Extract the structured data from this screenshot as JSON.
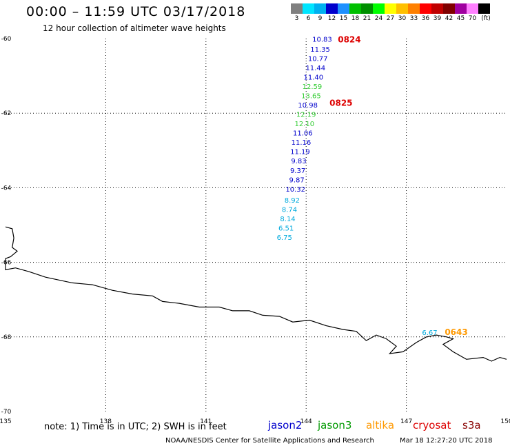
{
  "header": {
    "title": "00:00 – 11:59 UTC 03/17/2018",
    "subtitle": "12 hour collection of altimeter wave heights"
  },
  "legend": {
    "colors": [
      "#808080",
      "#00e5ff",
      "#00b0f0",
      "#0000cc",
      "#1e90ff",
      "#00c000",
      "#009000",
      "#00ff00",
      "#ffff00",
      "#ffc000",
      "#ff8000",
      "#ff0000",
      "#c00000",
      "#800000",
      "#a000a0",
      "#ff80ff",
      "#000000"
    ],
    "labels": [
      "3",
      "6",
      "9",
      "12",
      "15",
      "18",
      "21",
      "24",
      "27",
      "30",
      "33",
      "36",
      "39",
      "42",
      "45",
      "70",
      "(ft)"
    ]
  },
  "map": {
    "lon_range": [
      135,
      150
    ],
    "lat_range": [
      -70,
      -60
    ],
    "lon_ticks": [
      "135",
      "138",
      "141",
      "144",
      "147",
      "150"
    ],
    "lat_ticks": [
      "-60",
      "-62",
      "-64",
      "-66",
      "-68",
      "-70"
    ],
    "coastline": [
      [
        135.0,
        -65.05
      ],
      [
        135.2,
        -65.1
      ],
      [
        135.25,
        -65.35
      ],
      [
        135.2,
        -65.6
      ],
      [
        135.35,
        -65.7
      ],
      [
        135.15,
        -65.85
      ],
      [
        135.0,
        -65.9
      ],
      [
        135.0,
        -66.2
      ],
      [
        135.3,
        -66.15
      ],
      [
        135.7,
        -66.25
      ],
      [
        136.2,
        -66.4
      ],
      [
        137.0,
        -66.55
      ],
      [
        137.6,
        -66.6
      ],
      [
        138.2,
        -66.75
      ],
      [
        138.8,
        -66.85
      ],
      [
        139.4,
        -66.9
      ],
      [
        139.7,
        -67.05
      ],
      [
        140.2,
        -67.1
      ],
      [
        140.8,
        -67.2
      ],
      [
        141.4,
        -67.2
      ],
      [
        141.8,
        -67.3
      ],
      [
        142.3,
        -67.3
      ],
      [
        142.7,
        -67.42
      ],
      [
        143.2,
        -67.45
      ],
      [
        143.6,
        -67.6
      ],
      [
        144.1,
        -67.55
      ],
      [
        144.6,
        -67.7
      ],
      [
        145.1,
        -67.8
      ],
      [
        145.5,
        -67.85
      ],
      [
        145.8,
        -68.1
      ],
      [
        146.1,
        -67.95
      ],
      [
        146.4,
        -68.05
      ],
      [
        146.7,
        -68.25
      ],
      [
        146.5,
        -68.45
      ],
      [
        146.9,
        -68.4
      ],
      [
        147.3,
        -68.15
      ],
      [
        147.6,
        -68.0
      ],
      [
        147.9,
        -67.95
      ],
      [
        148.2,
        -68.0
      ],
      [
        148.4,
        -68.05
      ],
      [
        148.1,
        -68.2
      ],
      [
        148.4,
        -68.4
      ],
      [
        148.8,
        -68.6
      ],
      [
        149.3,
        -68.55
      ],
      [
        149.55,
        -68.65
      ],
      [
        149.8,
        -68.55
      ],
      [
        150.0,
        -68.6
      ]
    ],
    "observations": [
      {
        "lon": 144.48,
        "lat": -60.08,
        "value": "10.83",
        "color": "#0000cc"
      },
      {
        "lon": 144.42,
        "lat": -60.35,
        "value": "11.35",
        "color": "#0000cc"
      },
      {
        "lon": 144.35,
        "lat": -60.6,
        "value": "10.77",
        "color": "#0000cc"
      },
      {
        "lon": 144.28,
        "lat": -60.85,
        "value": "11.44",
        "color": "#0000cc"
      },
      {
        "lon": 144.22,
        "lat": -61.1,
        "value": "11.40",
        "color": "#0000cc"
      },
      {
        "lon": 144.18,
        "lat": -61.35,
        "value": "12.59",
        "color": "#33cc33"
      },
      {
        "lon": 144.15,
        "lat": -61.6,
        "value": "13.65",
        "color": "#33cc33"
      },
      {
        "lon": 144.05,
        "lat": -61.85,
        "value": "10.98",
        "color": "#0000cc"
      },
      {
        "lon": 144.0,
        "lat": -62.1,
        "value": "12.19",
        "color": "#33cc33"
      },
      {
        "lon": 143.95,
        "lat": -62.35,
        "value": "12.10",
        "color": "#33cc33"
      },
      {
        "lon": 143.9,
        "lat": -62.6,
        "value": "11.06",
        "color": "#0000cc"
      },
      {
        "lon": 143.85,
        "lat": -62.85,
        "value": "11.16",
        "color": "#0000cc"
      },
      {
        "lon": 143.82,
        "lat": -63.1,
        "value": "11.19",
        "color": "#0000cc"
      },
      {
        "lon": 143.78,
        "lat": -63.35,
        "value": "9.83",
        "color": "#0000cc"
      },
      {
        "lon": 143.75,
        "lat": -63.6,
        "value": "9.37",
        "color": "#0000cc"
      },
      {
        "lon": 143.72,
        "lat": -63.85,
        "value": "9.87",
        "color": "#0000cc"
      },
      {
        "lon": 143.68,
        "lat": -64.1,
        "value": "10.32",
        "color": "#0000cc"
      },
      {
        "lon": 143.58,
        "lat": -64.4,
        "value": "8.92",
        "color": "#00aadd"
      },
      {
        "lon": 143.5,
        "lat": -64.65,
        "value": "8.74",
        "color": "#00aadd"
      },
      {
        "lon": 143.45,
        "lat": -64.9,
        "value": "8.14",
        "color": "#00aadd"
      },
      {
        "lon": 143.4,
        "lat": -65.15,
        "value": "6.51",
        "color": "#00aadd"
      },
      {
        "lon": 143.35,
        "lat": -65.4,
        "value": "6.75",
        "color": "#00aadd"
      },
      {
        "lon": 147.7,
        "lat": -67.95,
        "value": "6.67",
        "color": "#00aadd"
      }
    ],
    "time_labels": [
      {
        "lon": 144.95,
        "lat": -60.1,
        "text": "0824",
        "color": "#dd0000"
      },
      {
        "lon": 144.7,
        "lat": -61.8,
        "text": "0825",
        "color": "#dd0000"
      },
      {
        "lon": 148.15,
        "lat": -67.95,
        "text": "0643",
        "color": "#ff9900"
      }
    ]
  },
  "footer": {
    "note": "note: 1) Time is in UTC; 2) SWH is in feet",
    "satellites": [
      {
        "name": "jason2",
        "color": "#0000cc"
      },
      {
        "name": "jason3",
        "color": "#009900"
      },
      {
        "name": "altika",
        "color": "#ff9900"
      },
      {
        "name": "cryosat",
        "color": "#dd0000"
      },
      {
        "name": "s3a",
        "color": "#880000"
      }
    ],
    "credit": "NOAA/NESDIS Center for Satellite Applications and Research",
    "timestamp": "Mar 18 12:27:20 UTC 2018"
  }
}
